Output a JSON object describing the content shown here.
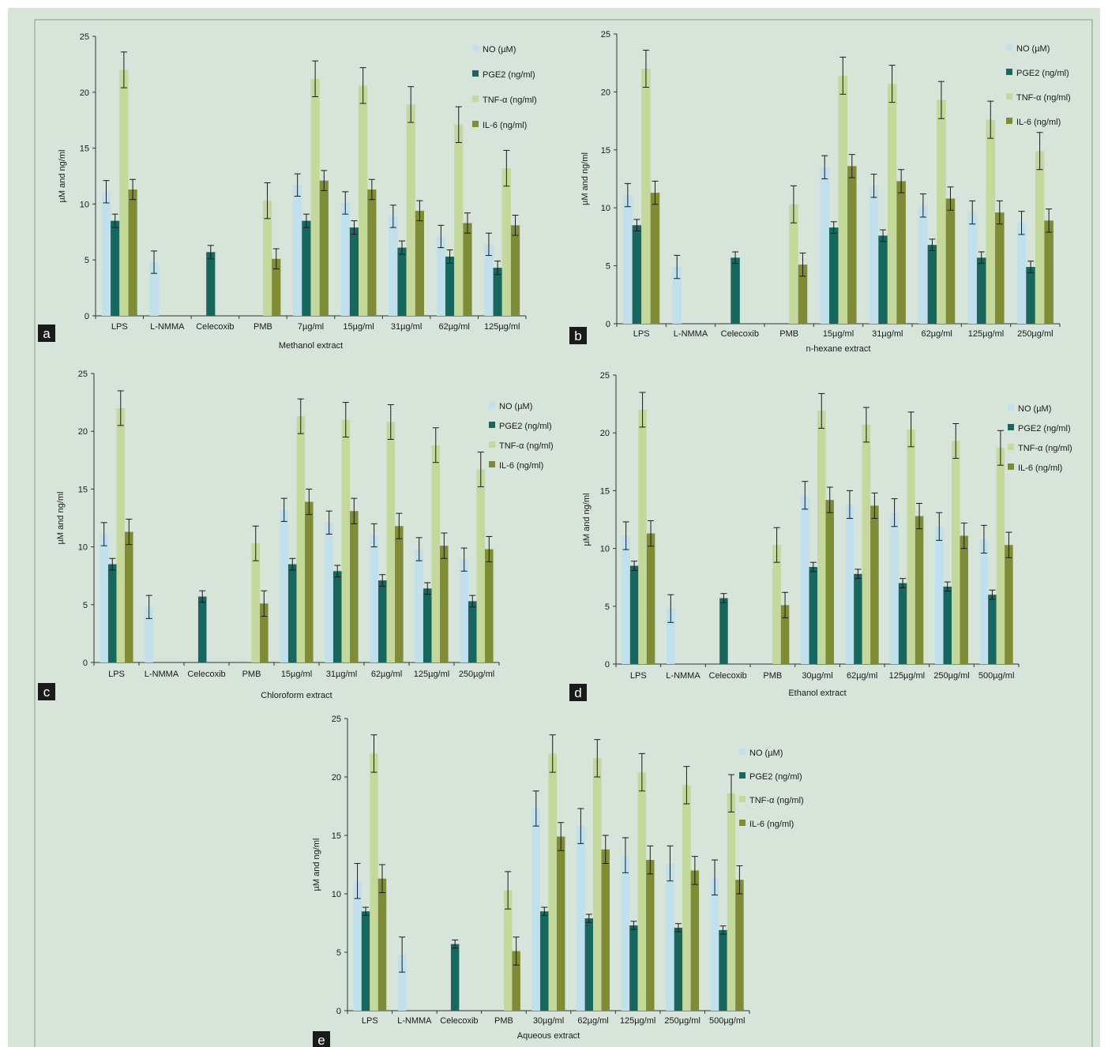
{
  "figure": {
    "background": "#d7e4d9",
    "border_color": "#9aa59c",
    "y_axis_label": "µM and ng/ml",
    "series_colors": {
      "NO (µM)": "#bfe0ec",
      "PGE2 (ng/ml)": "#17675f",
      "TNF-α (ng/ml)": "#c3d89a",
      "IL-6 (ng/ml)": "#7f8b36"
    },
    "error_bar_color": "#1a1a1a",
    "panel_label_bg": "#1a1a1a",
    "panel_label_color": "#ffffff"
  },
  "chart_data": [
    {
      "type": "bar",
      "panel": "a",
      "xlabel": "Methanol extract",
      "ylabel": "µM and ng/ml",
      "ylim": [
        0,
        25
      ],
      "yticks": [
        0,
        5,
        10,
        15,
        20,
        25
      ],
      "categories": [
        "LPS",
        "L-NMMA",
        "Celecoxib",
        "PMB",
        "7µg/ml",
        "15µg/ml",
        "31µg/ml",
        "62µg/ml",
        "125µg/ml"
      ],
      "legend_position": "top-right",
      "series": [
        {
          "name": "NO (µM)",
          "values": [
            11.1,
            4.8,
            null,
            null,
            11.7,
            10.1,
            8.9,
            7.1,
            6.4
          ],
          "errors": [
            1.0,
            1.0,
            null,
            null,
            1.0,
            1.0,
            1.0,
            1.0,
            1.0
          ]
        },
        {
          "name": "PGE2 (ng/ml)",
          "values": [
            8.5,
            null,
            5.7,
            null,
            8.5,
            7.9,
            6.1,
            5.3,
            4.3
          ],
          "errors": [
            0.6,
            null,
            0.6,
            null,
            0.6,
            0.6,
            0.6,
            0.6,
            0.6
          ]
        },
        {
          "name": "TNF-α (ng/ml)",
          "values": [
            22.0,
            null,
            null,
            10.3,
            21.2,
            20.6,
            18.9,
            17.1,
            13.2
          ],
          "errors": [
            1.6,
            null,
            null,
            1.6,
            1.6,
            1.6,
            1.6,
            1.6,
            1.6
          ]
        },
        {
          "name": "IL-6 (ng/ml)",
          "values": [
            11.3,
            null,
            null,
            5.1,
            12.1,
            11.3,
            9.4,
            8.3,
            8.1
          ],
          "errors": [
            0.9,
            null,
            null,
            0.9,
            0.9,
            0.9,
            0.9,
            0.9,
            0.9
          ]
        }
      ]
    },
    {
      "type": "bar",
      "panel": "b",
      "xlabel": "n-hexane extract",
      "ylabel": "µM and ng/ml",
      "ylim": [
        0,
        25
      ],
      "yticks": [
        0,
        5,
        10,
        15,
        20,
        25
      ],
      "categories": [
        "LPS",
        "L-NMMA",
        "Celecoxib",
        "PMB",
        "15µg/ml",
        "31µg/ml",
        "62µg/ml",
        "125µg/ml",
        "250µg/ml"
      ],
      "legend_position": "top-right",
      "series": [
        {
          "name": "NO (µM)",
          "values": [
            11.1,
            4.9,
            null,
            null,
            13.5,
            11.9,
            10.2,
            9.6,
            8.7
          ],
          "errors": [
            1.0,
            1.0,
            null,
            null,
            1.0,
            1.0,
            1.0,
            1.0,
            1.0
          ]
        },
        {
          "name": "PGE2 (ng/ml)",
          "values": [
            8.5,
            null,
            5.7,
            null,
            8.3,
            7.6,
            6.8,
            5.7,
            4.9
          ],
          "errors": [
            0.5,
            null,
            0.5,
            null,
            0.5,
            0.5,
            0.5,
            0.5,
            0.5
          ]
        },
        {
          "name": "TNF-α (ng/ml)",
          "values": [
            22.0,
            null,
            null,
            10.3,
            21.4,
            20.7,
            19.3,
            17.6,
            14.9
          ],
          "errors": [
            1.6,
            null,
            null,
            1.6,
            1.6,
            1.6,
            1.6,
            1.6,
            1.6
          ]
        },
        {
          "name": "IL-6 (ng/ml)",
          "values": [
            11.3,
            null,
            null,
            5.1,
            13.6,
            12.3,
            10.8,
            9.6,
            8.9
          ],
          "errors": [
            1.0,
            null,
            null,
            1.0,
            1.0,
            1.0,
            1.0,
            1.0,
            1.0
          ]
        }
      ]
    },
    {
      "type": "bar",
      "panel": "c",
      "xlabel": "Chloroform extract",
      "ylabel": "µM and ng/ml",
      "ylim": [
        0,
        25
      ],
      "yticks": [
        0,
        5,
        10,
        15,
        20,
        25
      ],
      "categories": [
        "LPS",
        "L-NMMA",
        "Celecoxib",
        "PMB",
        "15µg/ml",
        "31µg/ml",
        "62µg/ml",
        "125µg/ml",
        "250µg/ml"
      ],
      "legend_position": "top-right",
      "series": [
        {
          "name": "NO (µM)",
          "values": [
            11.1,
            4.8,
            null,
            null,
            13.2,
            12.1,
            11.0,
            9.8,
            8.9
          ],
          "errors": [
            1.0,
            1.0,
            null,
            null,
            1.0,
            1.0,
            1.0,
            1.0,
            1.0
          ]
        },
        {
          "name": "PGE2 (ng/ml)",
          "values": [
            8.5,
            null,
            5.7,
            null,
            8.5,
            7.9,
            7.1,
            6.4,
            5.3
          ],
          "errors": [
            0.5,
            null,
            0.5,
            null,
            0.5,
            0.5,
            0.5,
            0.5,
            0.5
          ]
        },
        {
          "name": "TNF-α (ng/ml)",
          "values": [
            22.0,
            null,
            null,
            10.3,
            21.3,
            21.0,
            20.8,
            18.8,
            16.7
          ],
          "errors": [
            1.5,
            null,
            null,
            1.5,
            1.5,
            1.5,
            1.5,
            1.5,
            1.5
          ]
        },
        {
          "name": "IL-6 (ng/ml)",
          "values": [
            11.3,
            null,
            null,
            5.1,
            13.9,
            13.1,
            11.8,
            10.1,
            9.8
          ],
          "errors": [
            1.1,
            null,
            null,
            1.1,
            1.1,
            1.1,
            1.1,
            1.1,
            1.1
          ]
        }
      ]
    },
    {
      "type": "bar",
      "panel": "d",
      "xlabel": "Ethanol extract",
      "ylabel": "µM and ng/ml",
      "ylim": [
        0,
        25
      ],
      "yticks": [
        0,
        5,
        10,
        15,
        20,
        25
      ],
      "categories": [
        "LPS",
        "L-NMMA",
        "Celecoxib",
        "PMB",
        "30µg/ml",
        "62µg/ml",
        "125µg/ml",
        "250µg/ml",
        "500µg/ml"
      ],
      "legend_position": "top-right",
      "series": [
        {
          "name": "NO (µM)",
          "values": [
            11.1,
            4.8,
            null,
            null,
            14.6,
            13.8,
            13.1,
            11.9,
            10.8
          ],
          "errors": [
            1.2,
            1.2,
            null,
            null,
            1.2,
            1.2,
            1.2,
            1.2,
            1.2
          ]
        },
        {
          "name": "PGE2 (ng/ml)",
          "values": [
            8.5,
            null,
            5.7,
            null,
            8.4,
            7.8,
            7.0,
            6.7,
            6.0
          ],
          "errors": [
            0.4,
            null,
            0.4,
            null,
            0.4,
            0.4,
            0.4,
            0.4,
            0.4
          ]
        },
        {
          "name": "TNF-α (ng/ml)",
          "values": [
            22.0,
            null,
            null,
            10.3,
            21.9,
            20.7,
            20.3,
            19.3,
            18.7
          ],
          "errors": [
            1.5,
            null,
            null,
            1.5,
            1.5,
            1.5,
            1.5,
            1.5,
            1.5
          ]
        },
        {
          "name": "IL-6 (ng/ml)",
          "values": [
            11.3,
            null,
            null,
            5.1,
            14.2,
            13.7,
            12.8,
            11.1,
            10.3
          ],
          "errors": [
            1.1,
            null,
            null,
            1.1,
            1.1,
            1.1,
            1.1,
            1.1,
            1.1
          ]
        }
      ]
    },
    {
      "type": "bar",
      "panel": "e",
      "xlabel": "Aqueous extract",
      "ylabel": "µM and ng/ml",
      "ylim": [
        0,
        25
      ],
      "yticks": [
        0,
        5,
        10,
        15,
        20,
        25
      ],
      "categories": [
        "LPS",
        "L-NMMA",
        "Celecoxib",
        "PMB",
        "30µg/ml",
        "62µg/ml",
        "125µg/ml",
        "250µg/ml",
        "500µg/ml"
      ],
      "legend_position": "top-right",
      "series": [
        {
          "name": "NO (µM)",
          "values": [
            11.1,
            4.8,
            null,
            null,
            17.3,
            15.8,
            13.3,
            12.6,
            11.4
          ],
          "errors": [
            1.5,
            1.5,
            null,
            null,
            1.5,
            1.5,
            1.5,
            1.5,
            1.5
          ]
        },
        {
          "name": "PGE2 (ng/ml)",
          "values": [
            8.5,
            null,
            5.7,
            null,
            8.5,
            7.9,
            7.3,
            7.1,
            6.9
          ],
          "errors": [
            0.35,
            null,
            0.35,
            null,
            0.35,
            0.35,
            0.35,
            0.35,
            0.35
          ]
        },
        {
          "name": "TNF-α (ng/ml)",
          "values": [
            22.0,
            null,
            null,
            10.3,
            22.0,
            21.6,
            20.4,
            19.3,
            18.6
          ],
          "errors": [
            1.6,
            null,
            null,
            1.6,
            1.6,
            1.6,
            1.6,
            1.6,
            1.6
          ]
        },
        {
          "name": "IL-6 (ng/ml)",
          "values": [
            11.3,
            null,
            null,
            5.1,
            14.9,
            13.8,
            12.9,
            12.0,
            11.2
          ],
          "errors": [
            1.2,
            null,
            null,
            1.2,
            1.2,
            1.2,
            1.2,
            1.2,
            1.2
          ]
        }
      ]
    }
  ]
}
